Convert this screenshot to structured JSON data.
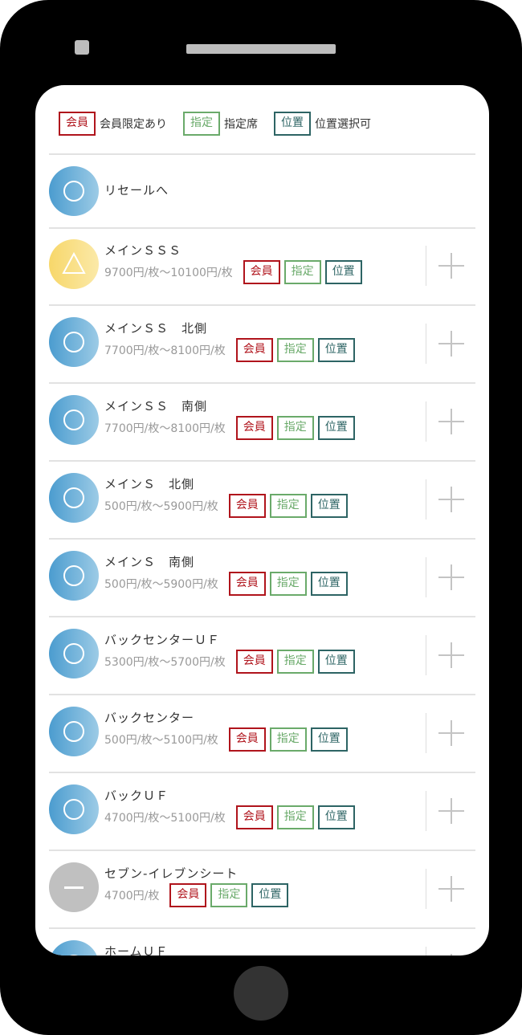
{
  "legend": [
    {
      "badge": "会員",
      "text": "会員限定あり"
    },
    {
      "badge": "指定",
      "text": "指定席"
    },
    {
      "badge": "位置",
      "text": "位置選択可"
    }
  ],
  "resale": {
    "label": "リセールへ",
    "status": "circle"
  },
  "badges": {
    "member": "会員",
    "reserved": "指定",
    "position": "位置"
  },
  "colors": {
    "member": "#b0141c",
    "reserved": "#6aaa6a",
    "position": "#2d6464",
    "available": "#4b9ccf",
    "few": "#f7d76a",
    "soldout": "#c0c0c0"
  },
  "seats": [
    {
      "name": "メインＳＳＳ",
      "price": "9700円/枚〜10100円/枚",
      "status": "triangle"
    },
    {
      "name": "メインＳＳ　北側",
      "price": "7700円/枚〜8100円/枚",
      "status": "circle"
    },
    {
      "name": "メインＳＳ　南側",
      "price": "7700円/枚〜8100円/枚",
      "status": "circle"
    },
    {
      "name": "メインＳ　北側",
      "price": "500円/枚〜5900円/枚",
      "status": "circle"
    },
    {
      "name": "メインＳ　南側",
      "price": "500円/枚〜5900円/枚",
      "status": "circle"
    },
    {
      "name": "バックセンターＵＦ",
      "price": "5300円/枚〜5700円/枚",
      "status": "circle"
    },
    {
      "name": "バックセンター",
      "price": "500円/枚〜5100円/枚",
      "status": "circle"
    },
    {
      "name": "バックＵＦ",
      "price": "4700円/枚〜5100円/枚",
      "status": "circle"
    },
    {
      "name": "セブン-イレブンシート",
      "price": "4700円/枚",
      "status": "dash"
    },
    {
      "name": "ホームＵＦ",
      "price": "",
      "status": "circle"
    }
  ]
}
